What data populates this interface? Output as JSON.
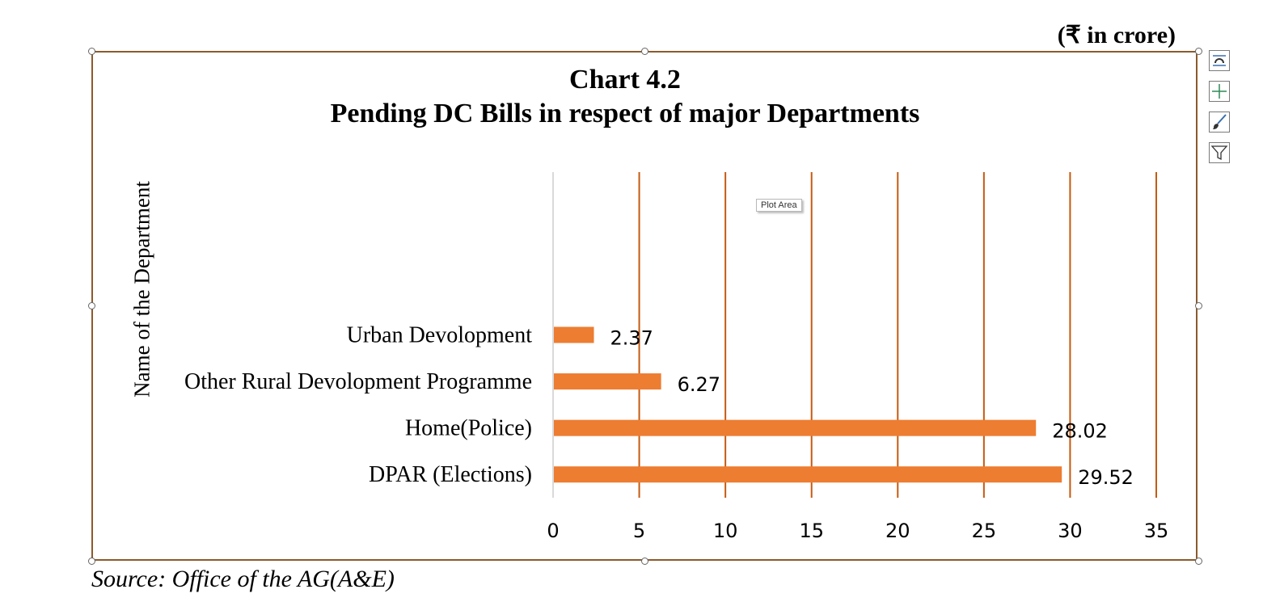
{
  "unit_note": "(₹ in crore)",
  "source_note": "Source: Office of the AG(A&E)",
  "tooltip": "Plot Area",
  "side_buttons": [
    "chart-layout-icon",
    "chart-elements-plus-icon",
    "chart-styles-brush-icon",
    "chart-filter-icon"
  ],
  "colors": {
    "bar": "#ED7D31",
    "gridline": "#C55A11",
    "axis": "#D9D9D9",
    "frame": "#8B5A2B"
  },
  "chart_data": {
    "type": "bar",
    "orientation": "horizontal",
    "title": "Chart 4.2",
    "subtitle": "Pending DC Bills in respect of major Departments",
    "ylabel": "Name of the Department",
    "xlabel": "",
    "categories": [
      "Urban Devolopment",
      "Other Rural Devolopment Programme",
      "Home(Police)",
      "DPAR (Elections)"
    ],
    "values": [
      2.37,
      6.27,
      28.02,
      29.52
    ],
    "value_labels": [
      "2.37",
      "6.27",
      "28.02",
      "29.52"
    ],
    "xlim": [
      0,
      35
    ],
    "xticks": [
      "0",
      "5",
      "10",
      "15",
      "20",
      "25",
      "30",
      "35"
    ],
    "grid": true,
    "legend": "none"
  }
}
